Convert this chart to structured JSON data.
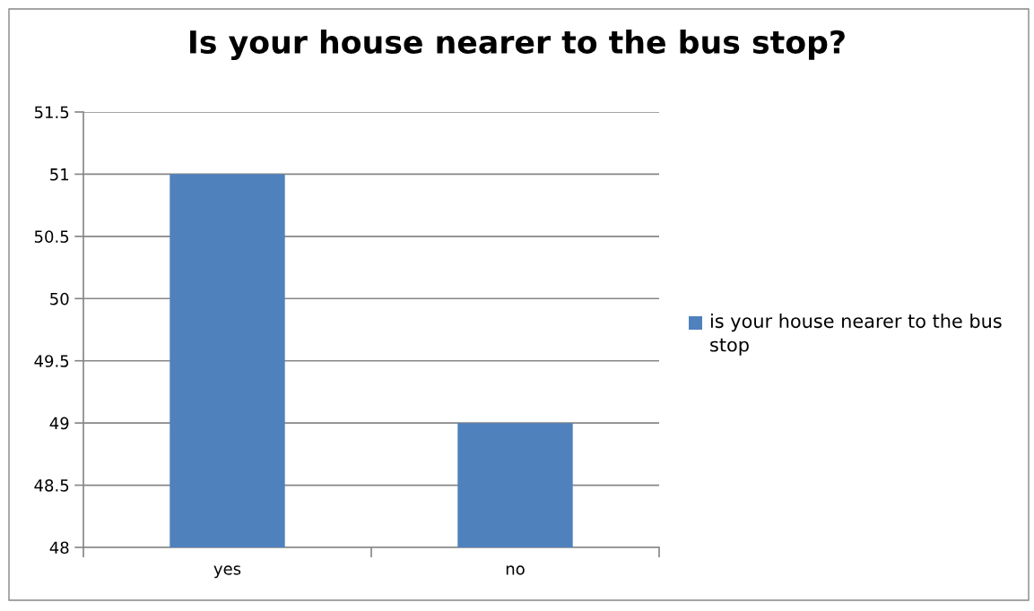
{
  "chart_data": {
    "type": "bar",
    "title": "Is your house nearer to the bus stop?",
    "categories": [
      "yes",
      "no"
    ],
    "series": [
      {
        "name": "is your house nearer to the bus stop",
        "color": "#4f81bd",
        "values": [
          51,
          49
        ]
      }
    ],
    "ylim": [
      48,
      51.5
    ],
    "yticks": [
      48,
      48.5,
      49,
      49.5,
      50,
      50.5,
      51,
      51.5
    ],
    "grid": "y",
    "legend": "right"
  }
}
